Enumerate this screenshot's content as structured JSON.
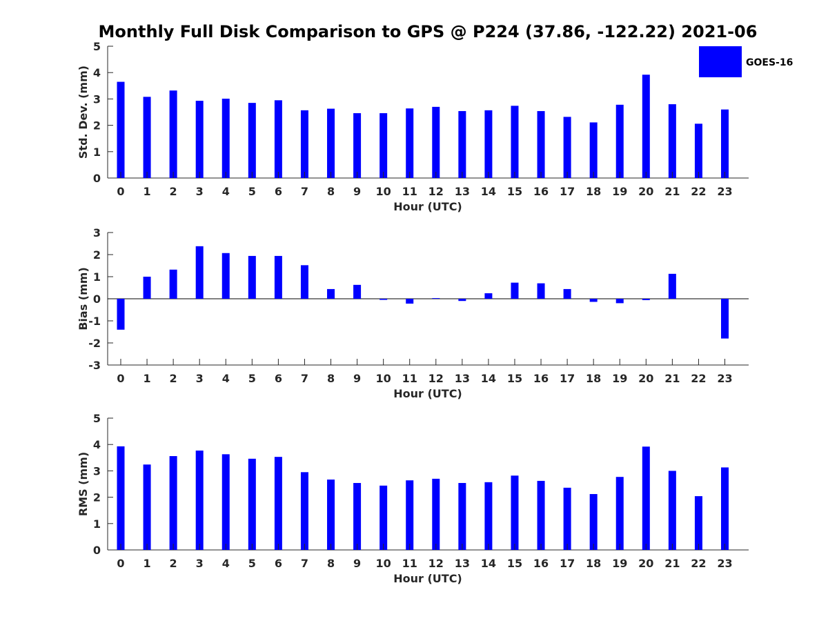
{
  "title": "Monthly Full Disk Comparison to GPS @ P224 (37.86, -122.22) 2021-06",
  "legend": {
    "label": "GOES-16",
    "color": "#0000ff"
  },
  "chart_data": [
    {
      "type": "bar",
      "ylabel": "Std. Dev. (mm)",
      "xlabel": "Hour (UTC)",
      "ylim": [
        0,
        5
      ],
      "yticks": [
        "0",
        "1",
        "2",
        "3",
        "4",
        "5"
      ],
      "categories": [
        "0",
        "1",
        "2",
        "3",
        "4",
        "5",
        "6",
        "7",
        "8",
        "9",
        "10",
        "11",
        "12",
        "13",
        "14",
        "15",
        "16",
        "17",
        "18",
        "19",
        "20",
        "21",
        "22",
        "23"
      ],
      "series": [
        {
          "name": "GOES-16",
          "values": [
            3.65,
            3.08,
            3.32,
            2.93,
            3.01,
            2.85,
            2.95,
            2.57,
            2.63,
            2.46,
            2.46,
            2.64,
            2.7,
            2.54,
            2.57,
            2.74,
            2.54,
            2.32,
            2.11,
            2.78,
            3.92,
            2.8,
            2.06,
            2.6
          ]
        }
      ]
    },
    {
      "type": "bar",
      "ylabel": "Bias (mm)",
      "xlabel": "Hour (UTC)",
      "ylim": [
        -3,
        3
      ],
      "yticks": [
        "-3",
        "-2",
        "-1",
        "0",
        "1",
        "2",
        "3"
      ],
      "categories": [
        "0",
        "1",
        "2",
        "3",
        "4",
        "5",
        "6",
        "7",
        "8",
        "9",
        "10",
        "11",
        "12",
        "13",
        "14",
        "15",
        "16",
        "17",
        "18",
        "19",
        "20",
        "21",
        "22",
        "23"
      ],
      "series": [
        {
          "name": "GOES-16",
          "values": [
            -1.4,
            1.0,
            1.32,
            2.38,
            2.07,
            1.94,
            1.94,
            1.52,
            0.44,
            0.63,
            -0.05,
            -0.22,
            0.03,
            -0.1,
            0.25,
            0.73,
            0.7,
            0.44,
            -0.14,
            -0.2,
            -0.06,
            1.13,
            0.0,
            -1.8
          ]
        }
      ]
    },
    {
      "type": "bar",
      "ylabel": "RMS (mm)",
      "xlabel": "Hour (UTC)",
      "ylim": [
        0,
        5
      ],
      "yticks": [
        "0",
        "1",
        "2",
        "3",
        "4",
        "5"
      ],
      "categories": [
        "0",
        "1",
        "2",
        "3",
        "4",
        "5",
        "6",
        "7",
        "8",
        "9",
        "10",
        "11",
        "12",
        "13",
        "14",
        "15",
        "16",
        "17",
        "18",
        "19",
        "20",
        "21",
        "22",
        "23"
      ],
      "series": [
        {
          "name": "GOES-16",
          "values": [
            3.93,
            3.24,
            3.56,
            3.77,
            3.63,
            3.46,
            3.53,
            2.95,
            2.67,
            2.54,
            2.44,
            2.64,
            2.7,
            2.54,
            2.57,
            2.82,
            2.62,
            2.36,
            2.12,
            2.77,
            3.92,
            3.0,
            2.04,
            3.13
          ]
        }
      ]
    }
  ]
}
